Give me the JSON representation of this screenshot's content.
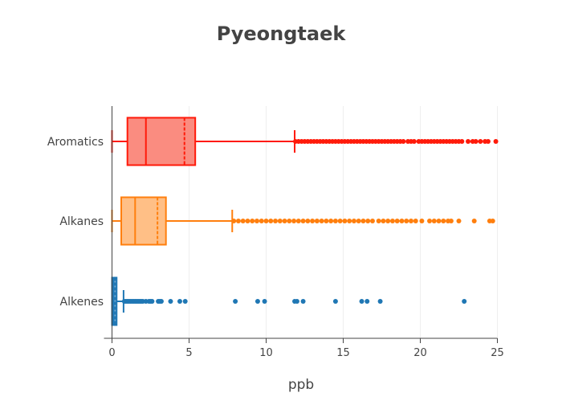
{
  "chart_data": {
    "type": "box",
    "title": "Pyeongtaek",
    "xlabel": "ppb",
    "ylabel": "",
    "xlim": [
      0,
      25
    ],
    "xticks": [
      0,
      5,
      10,
      15,
      20,
      25
    ],
    "grid": true,
    "orientation": "horizontal",
    "series": [
      {
        "name": "Aromatics",
        "color": "#ff1a0a",
        "fill": "#fa8c80",
        "lowerfence": 0,
        "q1": 1.0,
        "median": 2.2,
        "mean": 4.7,
        "q3": 5.4,
        "upperfence": 11.85,
        "outliers": [
          11.9,
          12.1,
          12.3,
          12.5,
          12.7,
          12.9,
          13.1,
          13.3,
          13.5,
          13.7,
          13.9,
          14.1,
          14.3,
          14.5,
          14.7,
          14.9,
          15.1,
          15.3,
          15.5,
          15.7,
          15.9,
          16.1,
          16.3,
          16.5,
          16.7,
          16.9,
          17.1,
          17.3,
          17.5,
          17.7,
          17.9,
          18.1,
          18.3,
          18.5,
          18.7,
          18.9,
          19.2,
          19.4,
          19.6,
          19.9,
          20.1,
          20.3,
          20.5,
          20.7,
          20.9,
          21.1,
          21.3,
          21.5,
          21.7,
          21.9,
          22.1,
          22.3,
          22.5,
          22.7,
          23.1,
          23.4,
          23.6,
          23.9,
          24.2,
          24.4,
          24.9
        ]
      },
      {
        "name": "Alkanes",
        "color": "#ff7f0e",
        "fill": "#ffbf86",
        "lowerfence": 0,
        "q1": 0.6,
        "median": 1.5,
        "mean": 2.95,
        "q3": 3.5,
        "upperfence": 7.8,
        "outliers": [
          7.9,
          8.2,
          8.5,
          8.8,
          9.1,
          9.4,
          9.7,
          10.0,
          10.3,
          10.6,
          10.9,
          11.2,
          11.5,
          11.8,
          12.1,
          12.4,
          12.7,
          13.0,
          13.3,
          13.6,
          13.9,
          14.2,
          14.5,
          14.8,
          15.1,
          15.4,
          15.7,
          16.0,
          16.3,
          16.6,
          16.9,
          17.3,
          17.6,
          17.9,
          18.2,
          18.5,
          18.8,
          19.1,
          19.4,
          19.7,
          20.1,
          20.6,
          20.9,
          21.2,
          21.5,
          21.8,
          22.0,
          22.5,
          23.5,
          24.5,
          24.7
        ]
      },
      {
        "name": "Alkenes",
        "color": "#1f77b4",
        "fill": "#6fa8d4",
        "lowerfence": 0,
        "q1": 0.0,
        "median": 0.1,
        "mean": 0.2,
        "q3": 0.3,
        "upperfence": 0.75,
        "outliers": [
          0.8,
          0.9,
          1.0,
          1.1,
          1.2,
          1.3,
          1.4,
          1.5,
          1.6,
          1.7,
          1.8,
          1.9,
          2.0,
          2.2,
          2.4,
          2.5,
          2.6,
          3.0,
          3.1,
          3.2,
          3.8,
          4.4,
          4.75,
          8.0,
          9.45,
          9.9,
          11.85,
          12.0,
          12.4,
          14.5,
          16.2,
          16.55,
          17.4,
          22.85
        ]
      }
    ]
  }
}
